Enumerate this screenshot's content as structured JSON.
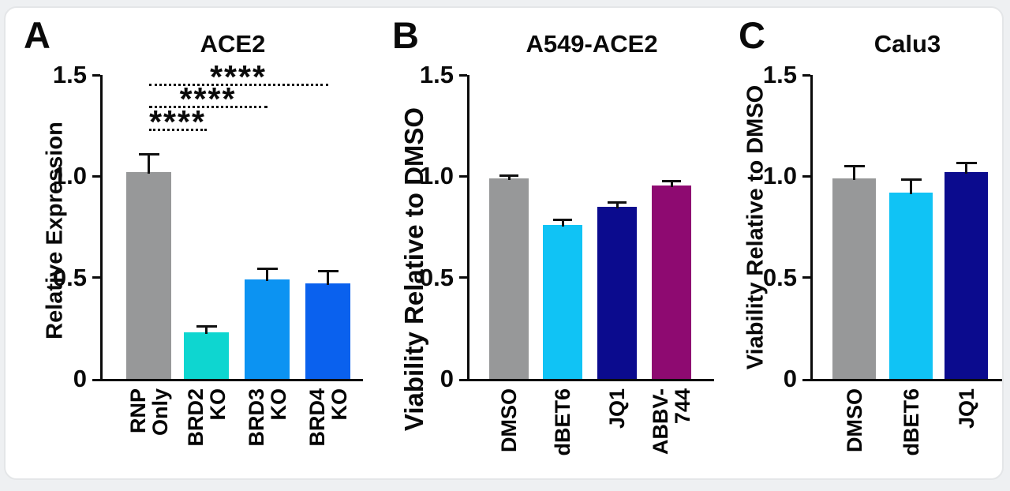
{
  "colors": {
    "text": "#000000",
    "axis": "#000000",
    "card_background": "#ffffff",
    "page_background": "#eef0f2",
    "card_border": "#e4e6e8",
    "gray_bar": "#979899",
    "turquoise_bar": "#0ed6d0",
    "azure_bar": "#0c93f2",
    "blue_bar": "#0a61ee",
    "sky_bar": "#10c3f5",
    "navy_bar": "#0b0b8e",
    "purple_bar": "#8e0a71"
  },
  "chart_data": [
    {
      "type": "bar",
      "panel_letter": "A",
      "title": "ACE2",
      "ylabel": "Relative Expression",
      "xlabel": "",
      "ylim": [
        0,
        1.5
      ],
      "grid": false,
      "legend": null,
      "yticks": [
        {
          "value": 0,
          "label": "0"
        },
        {
          "value": 0.5,
          "label": "0.5"
        },
        {
          "value": 1.0,
          "label": "1.0"
        },
        {
          "value": 1.5,
          "label": "1.5"
        }
      ],
      "categories": [
        "RNP Only",
        "BRD2 KO",
        "BRD3 KO",
        "BRD4 KO"
      ],
      "category_label_lines": [
        [
          "RNP",
          "Only"
        ],
        [
          "BRD2",
          "KO"
        ],
        [
          "BRD3",
          "KO"
        ],
        [
          "BRD4",
          "KO"
        ]
      ],
      "values": [
        1.02,
        0.23,
        0.49,
        0.47
      ],
      "errors_up": [
        0.09,
        0.03,
        0.055,
        0.06
      ],
      "bar_colors": [
        "#979899",
        "#0ed6d0",
        "#0c93f2",
        "#0a61ee"
      ],
      "significance": [
        {
          "stars": "****",
          "from": "RNP Only",
          "to": "BRD2 KO"
        },
        {
          "stars": "****",
          "from": "RNP Only",
          "to": "BRD3 KO"
        },
        {
          "stars": "****",
          "from": "RNP Only",
          "to": "BRD4 KO"
        }
      ]
    },
    {
      "type": "bar",
      "panel_letter": "B",
      "title": "A549-ACE2",
      "ylabel": "Viability Relative to DMSO",
      "xlabel": "",
      "ylim": [
        0,
        1.5
      ],
      "grid": false,
      "legend": null,
      "yticks": [
        {
          "value": 0,
          "label": "0"
        },
        {
          "value": 0.5,
          "label": "0.5"
        },
        {
          "value": 1.0,
          "label": "1.0"
        },
        {
          "value": 1.5,
          "label": "1.5"
        }
      ],
      "categories": [
        "DMSO",
        "dBET6",
        "JQ1",
        "ABBV-744"
      ],
      "category_label_lines": [
        [
          "DMSO"
        ],
        [
          "dBET6"
        ],
        [
          "JQ1"
        ],
        [
          "ABBV-",
          "744"
        ]
      ],
      "values": [
        0.99,
        0.76,
        0.85,
        0.955
      ],
      "errors_up": [
        0.015,
        0.025,
        0.02,
        0.02
      ],
      "bar_colors": [
        "#979899",
        "#10c3f5",
        "#0b0b8e",
        "#8e0a71"
      ],
      "significance": []
    },
    {
      "type": "bar",
      "panel_letter": "C",
      "title": "Calu3",
      "ylabel": "Viability Relative to DMSO",
      "xlabel": "",
      "ylim": [
        0,
        1.5
      ],
      "grid": false,
      "legend": null,
      "yticks": [
        {
          "value": 0,
          "label": "0"
        },
        {
          "value": 0.5,
          "label": "0.5"
        },
        {
          "value": 1.0,
          "label": "1.0"
        },
        {
          "value": 1.5,
          "label": "1.5"
        }
      ],
      "categories": [
        "DMSO",
        "dBET6",
        "JQ1"
      ],
      "category_label_lines": [
        [
          "DMSO"
        ],
        [
          "dBET6"
        ],
        [
          "JQ1"
        ]
      ],
      "values": [
        0.99,
        0.92,
        1.02
      ],
      "errors_up": [
        0.06,
        0.065,
        0.045
      ],
      "bar_colors": [
        "#979899",
        "#10c3f5",
        "#0b0b8e"
      ],
      "significance": []
    }
  ]
}
